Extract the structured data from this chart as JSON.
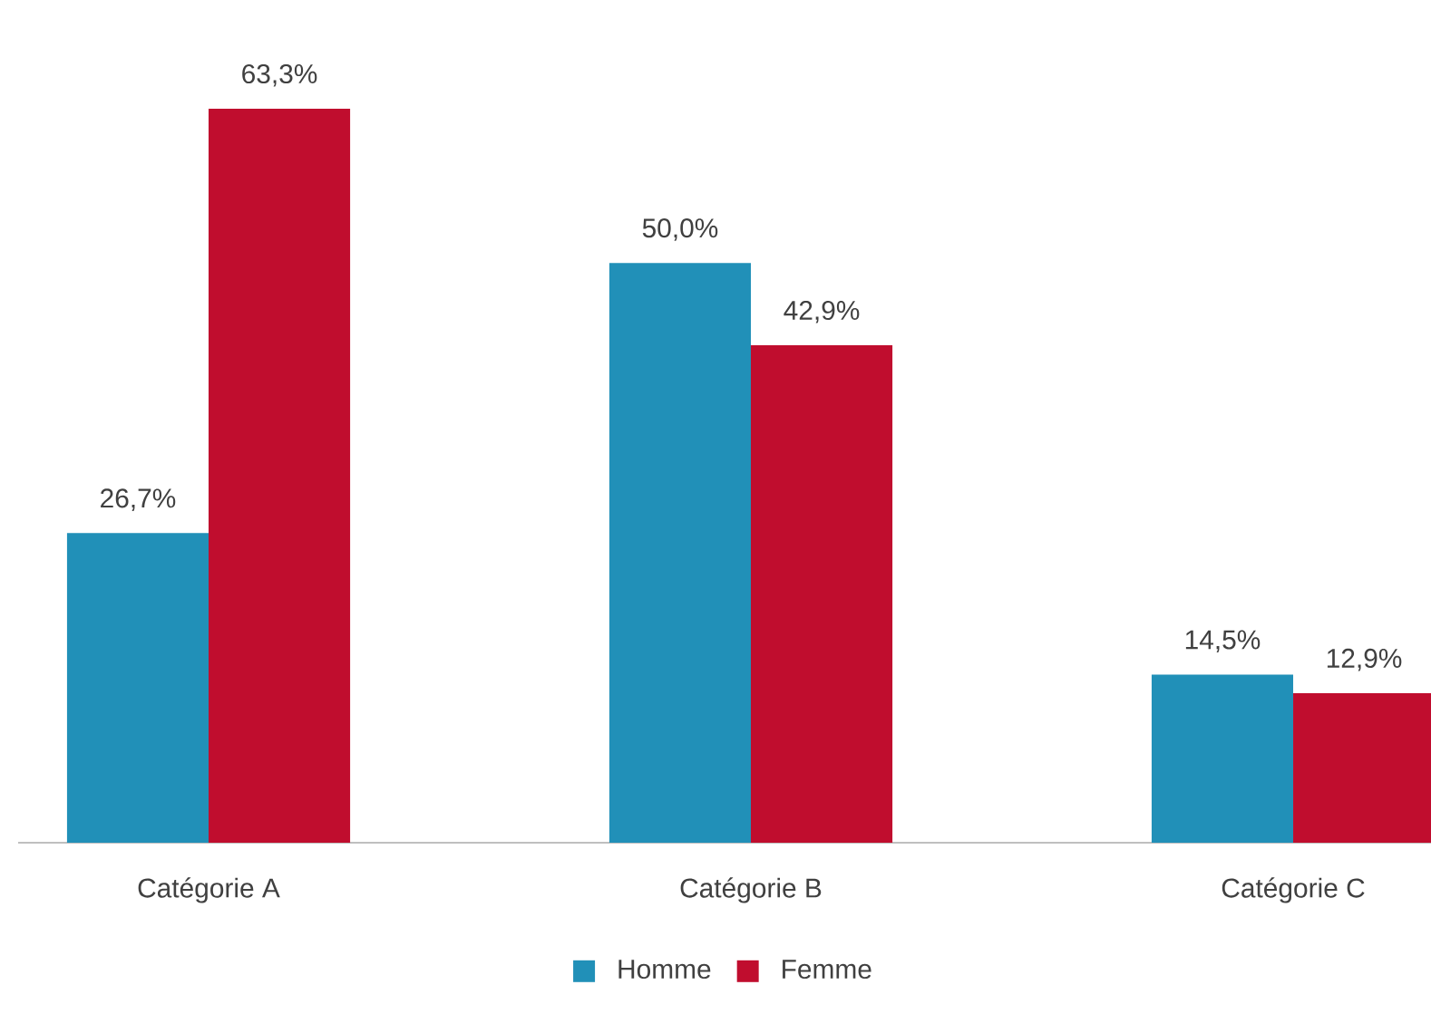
{
  "chart_data": {
    "type": "bar",
    "categories": [
      "Catégorie A",
      "Catégorie B",
      "Catégorie C"
    ],
    "series": [
      {
        "name": "Homme",
        "color": "#2190b8",
        "values": [
          26.7,
          50.0,
          14.5
        ],
        "value_labels": [
          "26,7%",
          "50,0%",
          "14,5%"
        ]
      },
      {
        "name": "Femme",
        "color": "#c00d2e",
        "values": [
          63.3,
          42.9,
          12.9
        ],
        "value_labels": [
          "63,3%",
          "42,9%",
          "12,9%"
        ]
      }
    ],
    "legend": "bottom"
  }
}
